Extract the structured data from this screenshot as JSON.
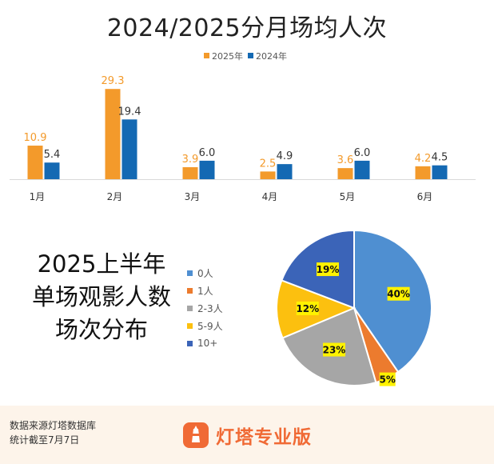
{
  "chart_data": [
    {
      "type": "bar",
      "title": "2024/2025分月场均人次",
      "categories": [
        "1月",
        "2月",
        "3月",
        "4月",
        "5月",
        "6月"
      ],
      "series": [
        {
          "name": "2025年",
          "values": [
            10.9,
            29.3,
            3.9,
            2.5,
            3.6,
            4.2
          ],
          "color": "#f39a2b"
        },
        {
          "name": "2024年",
          "values": [
            5.4,
            19.4,
            6.0,
            4.9,
            6.0,
            4.5
          ],
          "color": "#1469b3"
        }
      ],
      "value_labels_2025": [
        "10.9",
        "29.3",
        "3.9",
        "2.5",
        "3.6",
        "4.2"
      ],
      "value_labels_2024": [
        "5.4",
        "19.4",
        "6.0",
        "4.9",
        "6.0",
        "4.5"
      ],
      "legend_position": "top-center",
      "grid": false,
      "ylim": [
        0,
        30
      ]
    },
    {
      "type": "pie",
      "title_lines": [
        "2025上半年",
        "单场观影人数",
        "场次分布"
      ],
      "categories": [
        "0人",
        "1人",
        "2-3人",
        "5-9人",
        "10+"
      ],
      "values": [
        40,
        5,
        23,
        12,
        19
      ],
      "labels": [
        "40%",
        "5%",
        "23%",
        "12%",
        "19%"
      ],
      "colors": [
        "#4f8fd1",
        "#ec7b2e",
        "#a6a6a6",
        "#fcc00f",
        "#3b64b8"
      ],
      "legend_position": "left"
    }
  ],
  "footer": {
    "source_line1": "数据来源灯塔数据库",
    "source_line2": "统计截至7月7日",
    "brand": "灯塔专业版"
  }
}
